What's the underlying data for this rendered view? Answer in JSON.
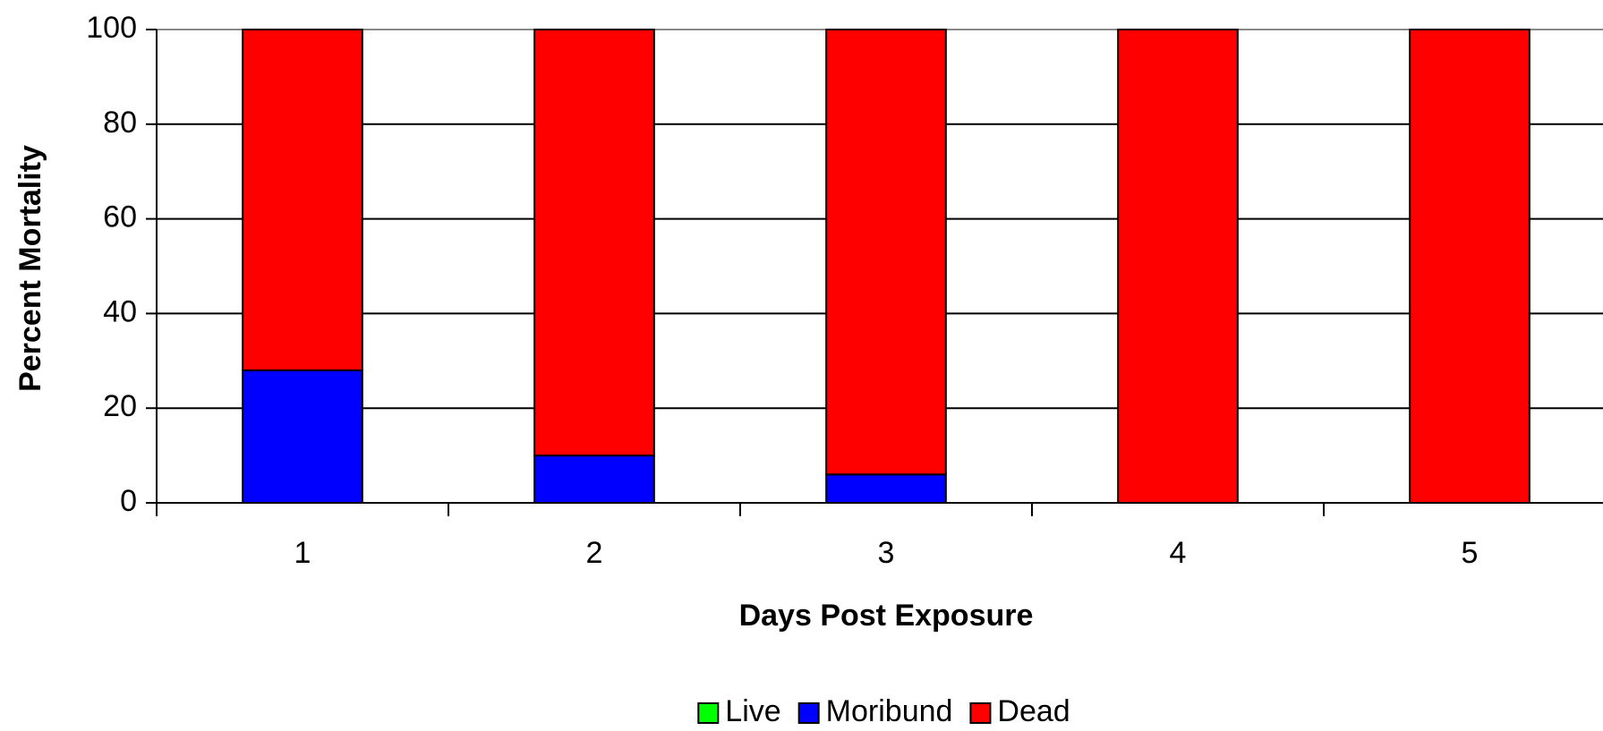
{
  "chart_data": {
    "type": "stacked_bar",
    "categories": [
      "1",
      "2",
      "3",
      "4",
      "5"
    ],
    "series": [
      {
        "name": "Live",
        "color": "#00ff00",
        "values": [
          0,
          0,
          0,
          0,
          0
        ]
      },
      {
        "name": "Moribund",
        "color": "#0000ff",
        "values": [
          28,
          10,
          6,
          0,
          0
        ]
      },
      {
        "name": "Dead",
        "color": "#ff0000",
        "values": [
          72,
          90,
          94,
          100,
          100
        ]
      }
    ],
    "x_label": "Days Post Exposure",
    "y_label": "Percent Mortality",
    "ylim": [
      0,
      100
    ],
    "yticks": [
      0,
      20,
      40,
      60,
      80,
      100
    ],
    "grid": true,
    "legend": "bottom"
  }
}
